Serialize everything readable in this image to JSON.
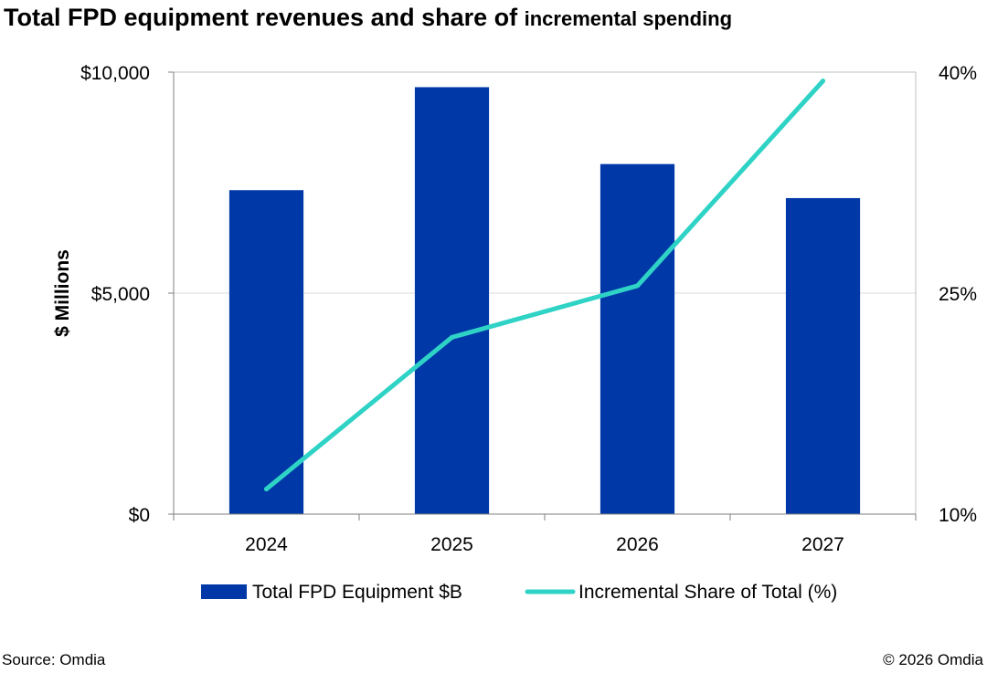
{
  "title_main": "Total FPD equipment revenues and share of",
  "title_sub": "incremental spending",
  "source": "Source: Omdia",
  "copyright": "© 2026 Omdia",
  "chart_data": {
    "type": "bar",
    "categories": [
      "2024",
      "2025",
      "2026",
      "2027"
    ],
    "series": [
      {
        "name": "Total FPD Equipment $B",
        "type": "bar",
        "axis": "left",
        "values": [
          7330,
          9660,
          7920,
          7150
        ],
        "color": "#0038A8"
      },
      {
        "name": "Incremental Share of Total (%)",
        "type": "line",
        "axis": "right",
        "values": [
          11.7,
          22.0,
          25.5,
          39.4
        ],
        "color": "#2ED3C6"
      }
    ],
    "ylabel": "$ Millions",
    "ylim": [
      0,
      10000
    ],
    "y_ticks": [
      "$0",
      "$5,000",
      "$10,000"
    ],
    "y2lim": [
      10,
      40
    ],
    "y2_ticks": [
      "10%",
      "25%",
      "40%"
    ],
    "grid": true,
    "legend_position": "bottom"
  }
}
